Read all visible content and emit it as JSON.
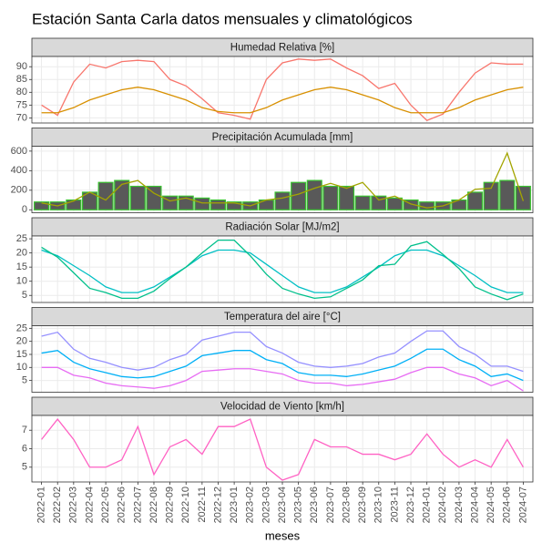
{
  "chart_data": {
    "title": "Estación Santa Carla datos mensuales y climatológicos",
    "x_label": "meses",
    "categories": [
      "2022-01",
      "2022-02",
      "2022-03",
      "2022-04",
      "2022-05",
      "2022-06",
      "2022-07",
      "2022-08",
      "2022-09",
      "2022-10",
      "2022-11",
      "2022-12",
      "2023-01",
      "2023-02",
      "2023-03",
      "2023-04",
      "2023-05",
      "2023-06",
      "2023-07",
      "2023-08",
      "2023-09",
      "2023-10",
      "2023-11",
      "2023-12",
      "2024-01",
      "2024-02",
      "2024-03",
      "2024-04",
      "2024-05",
      "2024-06",
      "2024-07"
    ],
    "grid": true,
    "panels": [
      {
        "type": "line",
        "title": "Humedad Relativa [%]",
        "ylim": [
          68,
          94
        ],
        "yticks": [
          70,
          75,
          80,
          85,
          90
        ],
        "series": [
          {
            "type": "line",
            "color": "#f8766d",
            "values": [
              75,
              71,
              84,
              91,
              89.5,
              92,
              92.5,
              92,
              85,
              82.5,
              77.5,
              72,
              71,
              69.5,
              85,
              91.5,
              93,
              92.5,
              93,
              89.5,
              86.5,
              81.5,
              83.5,
              75,
              69,
              71.5,
              80,
              87.5,
              91.5,
              91,
              91
            ]
          },
          {
            "type": "line",
            "color": "#d89000",
            "values": [
              72,
              72,
              74,
              77,
              79,
              81,
              82,
              81,
              79,
              77,
              74,
              72.5,
              72,
              72,
              74,
              77,
              79,
              81,
              82,
              81,
              79,
              77,
              74,
              72,
              72,
              72,
              74,
              77,
              79,
              81,
              82
            ]
          }
        ]
      },
      {
        "type": "combo",
        "title": "Precipitación Acumulada [mm]",
        "ylim": [
          -30,
          650
        ],
        "yticks": [
          0,
          200,
          400,
          600
        ],
        "series": [
          {
            "type": "bar",
            "color": "#595959",
            "stroke": "#39c230",
            "values": [
              80,
              80,
              100,
              180,
              280,
              300,
              240,
              240,
              140,
              140,
              120,
              100,
              80,
              80,
              100,
              180,
              280,
              300,
              240,
              240,
              140,
              140,
              120,
              100,
              80,
              80,
              100,
              180,
              280,
              300,
              240
            ]
          },
          {
            "type": "line",
            "color": "#a3a500",
            "values": [
              70,
              40,
              90,
              180,
              100,
              260,
              300,
              170,
              90,
              120,
              70,
              70,
              70,
              40,
              100,
              120,
              160,
              220,
              270,
              220,
              280,
              100,
              140,
              60,
              20,
              40,
              100,
              210,
              220,
              580,
              90
            ]
          }
        ]
      },
      {
        "type": "line",
        "title": "Radiación Solar [MJ/m2]",
        "ylim": [
          2.5,
          26
        ],
        "yticks": [
          5,
          10,
          15,
          20,
          25
        ],
        "series": [
          {
            "type": "line",
            "color": "#00bfc4",
            "values": [
              21,
              19,
              15.5,
              12,
              8,
              6,
              6,
              8,
              11.5,
              15,
              19,
              21,
              21,
              20,
              16,
              12,
              8,
              6,
              6,
              8,
              11.5,
              15,
              19,
              21,
              21,
              19,
              15.5,
              12,
              8,
              6,
              6
            ]
          },
          {
            "type": "line",
            "color": "#00c08b",
            "values": [
              22,
              18.5,
              13,
              7.5,
              6,
              4,
              4,
              6.5,
              11,
              15,
              20,
              24.5,
              24.5,
              19,
              12.5,
              7.5,
              5.5,
              4,
              4.5,
              7.5,
              10.5,
              15.5,
              16,
              22.5,
              24,
              19.5,
              14.5,
              8,
              5.5,
              3.5,
              5.5
            ]
          }
        ]
      },
      {
        "type": "line",
        "title": "Temperatura del aire [°C]",
        "ylim": [
          0.5,
          26
        ],
        "yticks": [
          5,
          10,
          15,
          20,
          25
        ],
        "series": [
          {
            "type": "line",
            "color": "#9590ff",
            "values": [
              22,
              23.5,
              17,
              13.5,
              12,
              10,
              9,
              10,
              13,
              15,
              20.5,
              22,
              23.5,
              23.5,
              18,
              15.5,
              12,
              10.5,
              10,
              10.5,
              11.5,
              14,
              15.5,
              20,
              24,
              24,
              18,
              15,
              10.5,
              10.5,
              8.5
            ]
          },
          {
            "type": "line",
            "color": "#00b0f6",
            "values": [
              15.5,
              16.5,
              12,
              9.5,
              8,
              6.5,
              6,
              6.5,
              8.5,
              10.5,
              14.5,
              15.5,
              16.5,
              16.5,
              13,
              11.5,
              8,
              7,
              7,
              6.5,
              7.5,
              9,
              10.5,
              13.5,
              17,
              17,
              13,
              10.5,
              6.5,
              7.5,
              5
            ]
          },
          {
            "type": "line",
            "color": "#e76bf3",
            "values": [
              10,
              10,
              7,
              6,
              4,
              3,
              2.5,
              2,
              3,
              5,
              8.5,
              9,
              9.5,
              9.5,
              8.5,
              7.5,
              5,
              4,
              4,
              3,
              3.5,
              4.5,
              5.5,
              8,
              10,
              10,
              7.5,
              6,
              3,
              5,
              1
            ]
          }
        ]
      },
      {
        "type": "line",
        "title": "Velocidad de Viento [km/h]",
        "ylim": [
          4.2,
          7.8
        ],
        "yticks": [
          5,
          6,
          7
        ],
        "series": [
          {
            "type": "line",
            "color": "#ff61c3",
            "values": [
              6.5,
              7.6,
              6.5,
              5,
              5,
              5.4,
              7.2,
              4.6,
              6.1,
              6.5,
              5.7,
              7.2,
              7.2,
              7.6,
              5,
              4.3,
              4.6,
              6.5,
              6.1,
              6.1,
              5.7,
              5.7,
              5.4,
              5.7,
              6.8,
              5.7,
              5,
              5.4,
              5,
              6.5,
              5
            ]
          }
        ]
      }
    ]
  }
}
